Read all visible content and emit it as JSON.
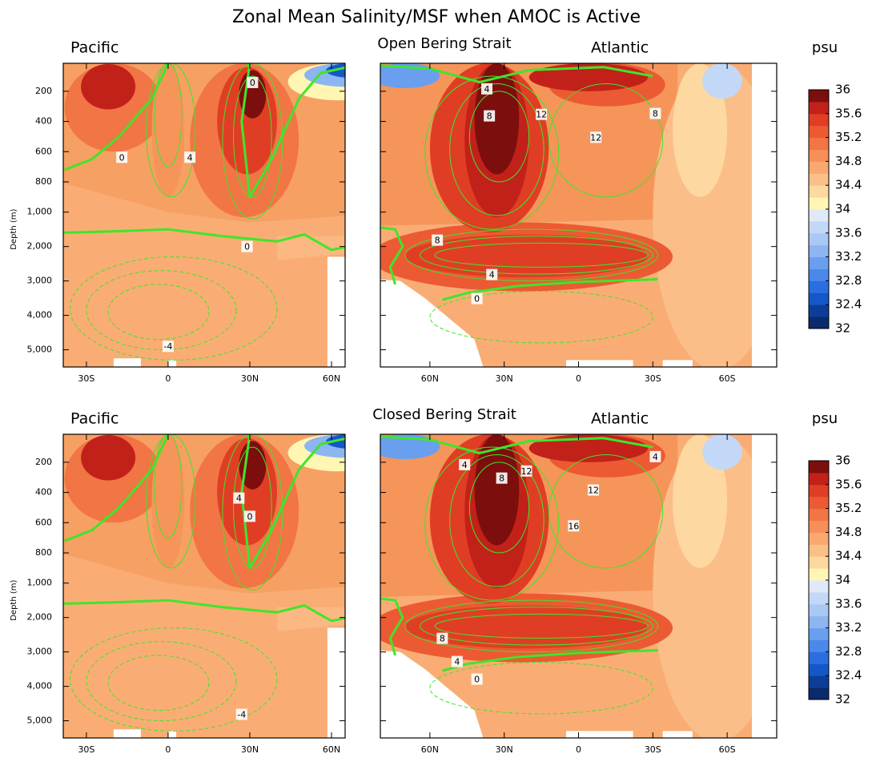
{
  "title": "Zonal Mean Salinity/MSF when AMOC is Active",
  "chart_data": [
    {
      "type": "contour",
      "title": "Pacific",
      "ylabel": "Depth (m)",
      "xlim": [
        -38.5,
        65
      ],
      "xticks": [
        {
          "value": -30,
          "label": "30S"
        },
        0,
        {
          "value": 30,
          "label": "30N"
        },
        {
          "value": 60,
          "label": "60N"
        }
      ],
      "ylim": [
        15,
        5500
      ],
      "yticks": [
        200,
        400,
        600,
        800,
        {
          "value": 1000,
          "label": "1,000"
        },
        {
          "value": 2000,
          "label": "2,000"
        },
        {
          "value": 3000,
          "label": "3,000"
        },
        {
          "value": 4000,
          "label": "4,000"
        },
        {
          "value": 5000,
          "label": "5,000"
        }
      ],
      "contour_labels": [
        {
          "value": 0,
          "x": 31,
          "y": 142
        },
        {
          "value": 0,
          "x": -17,
          "y": 637
        },
        {
          "value": 4,
          "x": 8,
          "y": 637
        },
        {
          "value": 0,
          "x": 29,
          "y": 2000
        },
        {
          "value": -4,
          "x": 0,
          "y": 4900
        }
      ]
    },
    {
      "type": "contour",
      "title": "Atlantic",
      "subtitle": "Open Bering Strait",
      "xlim": [
        80,
        -80
      ],
      "xticks": [
        {
          "value": 60,
          "label": "60N"
        },
        {
          "value": 30,
          "label": "30N"
        },
        0,
        {
          "value": -30,
          "label": "30S"
        },
        {
          "value": -60,
          "label": "60S"
        }
      ],
      "ylim": [
        15,
        5500
      ],
      "yticks": [
        200,
        400,
        600,
        800,
        1000,
        2000,
        3000,
        4000,
        5000
      ],
      "contour_labels": [
        {
          "value": 4,
          "x": 37,
          "y": 184
        },
        {
          "value": 8,
          "x": 36,
          "y": 363
        },
        {
          "value": 12,
          "x": 15,
          "y": 353
        },
        {
          "value": 12,
          "x": -7,
          "y": 505
        },
        {
          "value": 8,
          "x": -31,
          "y": 347
        },
        {
          "value": 8,
          "x": 57,
          "y": 1814
        },
        {
          "value": 4,
          "x": 35,
          "y": 2814
        },
        {
          "value": 0,
          "x": 41,
          "y": 3512
        }
      ],
      "colorbar": {
        "label": "psu",
        "lim": [
          32,
          36
        ],
        "ticks": [
          32,
          32.4,
          32.8,
          33.2,
          33.6,
          34,
          34.4,
          34.8,
          35.2,
          35.6,
          36
        ],
        "colors": [
          "#0a2a6b",
          "#0d3d99",
          "#1556c8",
          "#2a6fe0",
          "#4a88ea",
          "#6a9ff0",
          "#8cb5f2",
          "#a9c8f4",
          "#c3d8f6",
          "#dfe9f8",
          "#fff6b4",
          "#fdd8a0",
          "#fbc088",
          "#f9a870",
          "#f68f58",
          "#f27545",
          "#ec5a33",
          "#e03e24",
          "#c2211a",
          "#7d0e0e"
        ]
      }
    },
    {
      "type": "contour",
      "title": "Pacific",
      "ylabel": "Depth (m)",
      "xlim": [
        -38.5,
        65
      ],
      "xticks": [
        {
          "value": -30,
          "label": "30S"
        },
        0,
        {
          "value": 30,
          "label": "30N"
        },
        {
          "value": 60,
          "label": "60N"
        }
      ],
      "ylim": [
        15,
        5500
      ],
      "yticks": [
        200,
        400,
        600,
        800,
        {
          "value": 1000,
          "label": "1,000"
        },
        {
          "value": 2000,
          "label": "2,000"
        },
        {
          "value": 3000,
          "label": "3,000"
        },
        {
          "value": 4000,
          "label": "4,000"
        },
        {
          "value": 5000,
          "label": "5,000"
        }
      ],
      "contour_labels": [
        {
          "value": 4,
          "x": 26,
          "y": 437
        },
        {
          "value": 0,
          "x": 30,
          "y": 558
        },
        {
          "value": -4,
          "x": 27,
          "y": 4814
        }
      ]
    },
    {
      "type": "contour",
      "title": "Atlantic",
      "subtitle": "Closed Bering Strait",
      "xlim": [
        80,
        -80
      ],
      "xticks": [
        {
          "value": 60,
          "label": "60N"
        },
        {
          "value": 30,
          "label": "30N"
        },
        0,
        {
          "value": -30,
          "label": "30S"
        },
        {
          "value": -60,
          "label": "60S"
        }
      ],
      "ylim": [
        15,
        5500
      ],
      "yticks": [
        200,
        400,
        600,
        800,
        1000,
        2000,
        3000,
        4000,
        5000
      ],
      "contour_labels": [
        {
          "value": 4,
          "x": 46,
          "y": 216
        },
        {
          "value": 8,
          "x": 31,
          "y": 305
        },
        {
          "value": 12,
          "x": 21,
          "y": 258
        },
        {
          "value": 4,
          "x": -31,
          "y": 163
        },
        {
          "value": 12,
          "x": -6,
          "y": 384
        },
        {
          "value": 16,
          "x": 2,
          "y": 621
        },
        {
          "value": 8,
          "x": 55,
          "y": 2605
        },
        {
          "value": 4,
          "x": 49,
          "y": 3279
        },
        {
          "value": 0,
          "x": 41,
          "y": 3790
        }
      ],
      "colorbar": {
        "label": "psu",
        "lim": [
          32,
          36
        ],
        "ticks": [
          32,
          32.4,
          32.8,
          33.2,
          33.6,
          34,
          34.4,
          34.8,
          35.2,
          35.6,
          36
        ],
        "colors": [
          "#0a2a6b",
          "#0d3d99",
          "#1556c8",
          "#2a6fe0",
          "#4a88ea",
          "#6a9ff0",
          "#8cb5f2",
          "#a9c8f4",
          "#c3d8f6",
          "#dfe9f8",
          "#fff6b4",
          "#fdd8a0",
          "#fbc088",
          "#f9a870",
          "#f68f58",
          "#f27545",
          "#ec5a33",
          "#e03e24",
          "#c2211a",
          "#7d0e0e"
        ]
      }
    }
  ]
}
